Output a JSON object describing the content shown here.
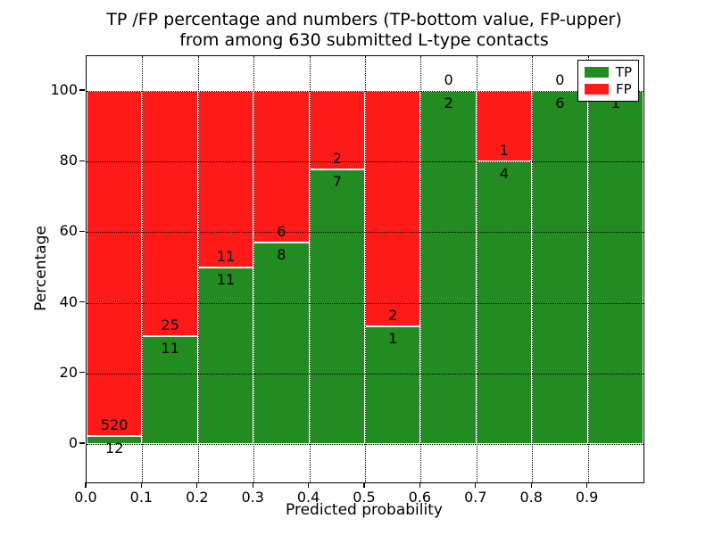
{
  "title": {
    "line1": "TP /FP percentage and numbers (TP-bottom value, FP-upper)",
    "line2": "from among 630 submitted L-type contacts"
  },
  "axes": {
    "x_label": "Predicted probability",
    "y_label": "Percentage",
    "x_ticks": [
      "0.0",
      "0.1",
      "0.2",
      "0.3",
      "0.4",
      "0.5",
      "0.6",
      "0.7",
      "0.8",
      "0.9"
    ],
    "y_ticks": [
      0,
      20,
      40,
      60,
      80,
      100
    ]
  },
  "legend": {
    "items": [
      {
        "label": "TP",
        "color": "#228b22"
      },
      {
        "label": "FP",
        "color": "#ff1a1a"
      }
    ],
    "position": "upper right"
  },
  "chart_data": {
    "type": "bar",
    "stacked": true,
    "normalized_to_percent": true,
    "title": "TP /FP percentage and numbers (TP-bottom value, FP-upper) from among 630 submitted L-type contacts",
    "xlabel": "Predicted probability",
    "ylabel": "Percentage",
    "xlim": [
      0.0,
      1.0
    ],
    "ylim": [
      -11,
      110
    ],
    "grid": true,
    "grid_style": "dotted",
    "legend_position": "upper right",
    "categories": [
      "0.0-0.1",
      "0.1-0.2",
      "0.2-0.3",
      "0.3-0.4",
      "0.4-0.5",
      "0.5-0.6",
      "0.6-0.7",
      "0.7-0.8",
      "0.8-0.9",
      "0.9-1.0"
    ],
    "series": [
      {
        "name": "TP",
        "color": "#228b22",
        "counts": [
          12,
          11,
          11,
          8,
          7,
          1,
          2,
          4,
          6,
          1
        ]
      },
      {
        "name": "FP",
        "color": "#ff1a1a",
        "counts": [
          520,
          25,
          11,
          6,
          2,
          2,
          0,
          1,
          0,
          0
        ]
      }
    ],
    "tp_percent": [
      2.26,
      30.56,
      50.0,
      57.14,
      77.78,
      33.33,
      100.0,
      80.0,
      100.0,
      100.0
    ],
    "total_submitted": 630
  }
}
